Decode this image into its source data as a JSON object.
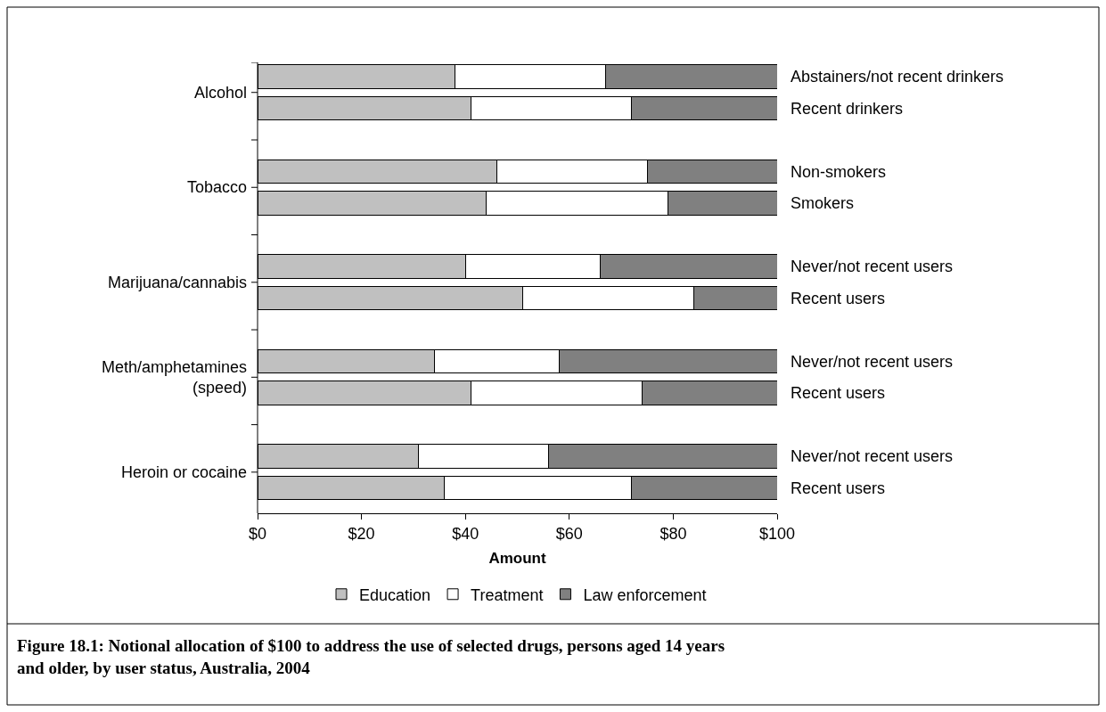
{
  "chart_data": {
    "type": "bar",
    "orientation": "horizontal",
    "stacked": true,
    "title": "Figure 18.1: Notional allocation of $100 to address the use of selected drugs, persons aged 14 years\nand older, by user status, Australia, 2004",
    "xlabel": "Amount",
    "categories": [
      "Abstainers/not recent drinkers",
      "Recent drinkers",
      "Non-smokers",
      "Smokers",
      "Never/not recent users",
      "Recent users",
      "Never/not recent users",
      "Recent users",
      "Never/not recent users",
      "Recent users"
    ],
    "annotations": [
      "Alcohol",
      "Tobacco",
      "Marijuana/cannabis",
      "Meth/amphetamines\n(speed)",
      "Heroin or cocaine"
    ],
    "series": [
      {
        "name": "Education",
        "color": "#c0c0c0",
        "values": [
          38,
          41,
          46,
          44,
          40,
          51,
          34,
          41,
          31,
          36
        ]
      },
      {
        "name": "Treatment",
        "color": "#ffffff",
        "values": [
          29,
          31,
          29,
          35,
          26,
          33,
          24,
          33,
          25,
          36
        ]
      },
      {
        "name": "Law enforcement",
        "color": "#808080",
        "values": [
          33,
          28,
          25,
          21,
          34,
          16,
          42,
          26,
          44,
          28
        ]
      }
    ],
    "xlim": [
      0,
      100
    ],
    "xticks": [
      {
        "value": 0,
        "label": "$0"
      },
      {
        "value": 20,
        "label": "$20"
      },
      {
        "value": 40,
        "label": "$40"
      },
      {
        "value": 60,
        "label": "$60"
      },
      {
        "value": 80,
        "label": "$80"
      },
      {
        "value": 100,
        "label": "$100"
      }
    ],
    "legend": "bottom"
  }
}
